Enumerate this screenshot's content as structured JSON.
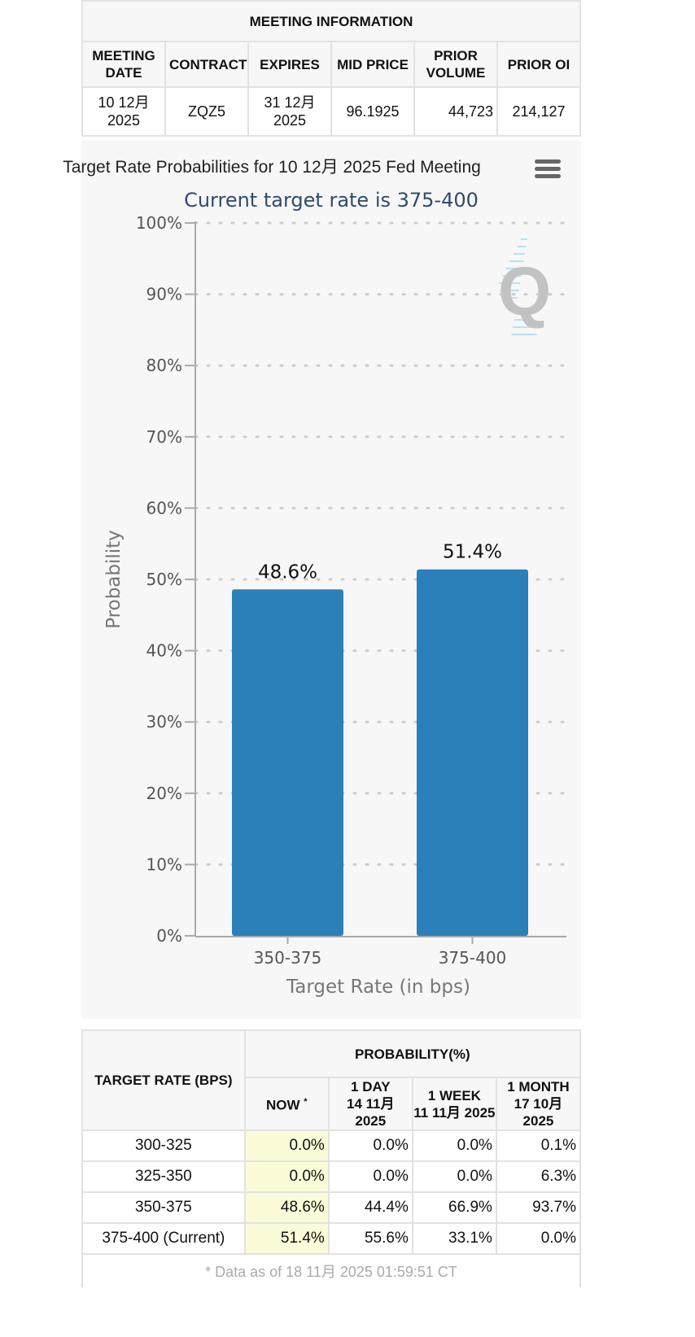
{
  "meeting": {
    "caption": "MEETING INFORMATION",
    "headers": [
      "MEETING DATE",
      "CONTRACT",
      "EXPIRES",
      "MID PRICE",
      "PRIOR VOLUME",
      "PRIOR OI"
    ],
    "row": {
      "meeting_date_1": "10 12月",
      "meeting_date_2": "2025",
      "contract": "ZQZ5",
      "expires_1": "31 12月",
      "expires_2": "2025",
      "mid_price": "96.1925",
      "prior_volume": "44,723",
      "prior_oi": "214,127"
    }
  },
  "chart_data": {
    "type": "bar",
    "title": "Target Rate Probabilities for 10 12月 2025 Fed Meeting",
    "subtitle": "Current target rate is 375-400",
    "xlabel": "Target Rate (in bps)",
    "ylabel": "Probability",
    "categories": [
      "350-375",
      "375-400"
    ],
    "values": [
      48.6,
      51.4
    ],
    "data_labels": [
      "48.6%",
      "51.4%"
    ],
    "ylim": [
      0,
      100
    ],
    "yticks": [
      "0%",
      "10%",
      "20%",
      "30%",
      "40%",
      "50%",
      "60%",
      "70%",
      "80%",
      "90%",
      "100%"
    ],
    "grid": true,
    "bar_color": "#2b80b9",
    "subtitle_color": "#2f4b6e",
    "menu_icon": "hamburger-menu-icon",
    "watermark": "Q"
  },
  "probabilities": {
    "header_rate": "TARGET RATE (BPS)",
    "header_group": "PROBABILITY(%)",
    "cols": [
      {
        "label": "NOW",
        "sup": "*"
      },
      {
        "label": "1 DAY",
        "date": "14 11月 2025"
      },
      {
        "label": "1 WEEK",
        "date": "11 11月 2025"
      },
      {
        "label": "1 MONTH",
        "date": "17 10月 2025"
      }
    ],
    "rows": [
      {
        "rate": "300-325",
        "now": "0.0%",
        "day": "0.0%",
        "week": "0.0%",
        "month": "0.1%"
      },
      {
        "rate": "325-350",
        "now": "0.0%",
        "day": "0.0%",
        "week": "0.0%",
        "month": "6.3%"
      },
      {
        "rate": "350-375",
        "now": "48.6%",
        "day": "44.4%",
        "week": "66.9%",
        "month": "93.7%"
      },
      {
        "rate": "375-400 (Current)",
        "now": "51.4%",
        "day": "55.6%",
        "week": "33.1%",
        "month": "0.0%"
      }
    ],
    "footnote": "* Data as of 18 11月 2025 01:59:51 CT",
    "now_highlight": "#fbfbd7"
  }
}
